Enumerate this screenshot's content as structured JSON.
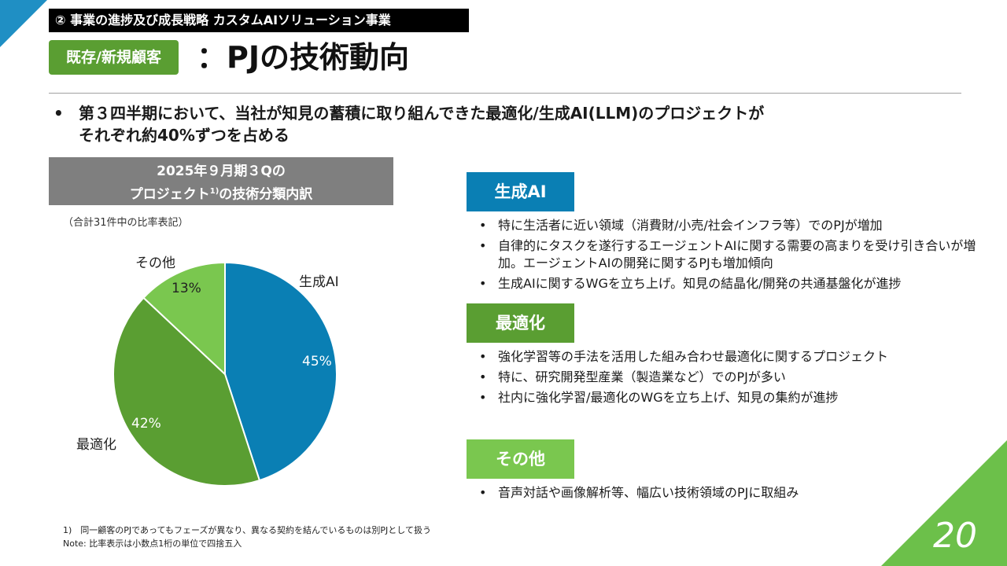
{
  "section_label": "② 事業の進捗及び成長戦略 カスタムAIソリューション事業",
  "badge": "既存/新規顧客",
  "title": "：PJの技術動向",
  "lead": {
    "bullet": "•",
    "text": "第３四半期において、当社が知見の蓄積に取り組んできた最適化/生成AI(LLM)のプロジェクトが\nそれぞれ約40%ずつを占める"
  },
  "chart_header": {
    "line1": "2025年９月期３Qの",
    "line2a": "プロジェクト",
    "sup": "1)",
    "line2b": "の技術分類内訳"
  },
  "chart_note": "（合計31件中の比率表記）",
  "chart_data": {
    "type": "pie",
    "slices": [
      {
        "label": "生成AI",
        "value": 45,
        "pct_label": "45%",
        "color": "#0a7fb4"
      },
      {
        "label": "最適化",
        "value": 42,
        "pct_label": "42%",
        "color": "#5a9e32"
      },
      {
        "label": "その他",
        "value": 13,
        "pct_label": "13%",
        "color": "#7ac74f"
      }
    ]
  },
  "categories": [
    {
      "label": "生成AI",
      "color": "#0a7fb4",
      "items": [
        "特に生活者に近い領域（消費財/小売/社会インフラ等）でのPJが増加",
        "自律的にタスクを遂行するエージェントAIに関する需要の高まりを受け引き合いが増加。エージェントAIの開発に関するPJも増加傾向",
        "生成AIに関するWGを立ち上げ。知見の結晶化/開発の共通基盤化が進捗"
      ]
    },
    {
      "label": "最適化",
      "color": "#5a9e32",
      "items": [
        "強化学習等の手法を活用した組み合わせ最適化に関するプロジェクト",
        "特に、研究開発型産業（製造業など）でのPJが多い",
        "社内に強化学習/最適化のWGを立ち上げ、知見の集約が進捗"
      ]
    },
    {
      "label": "その他",
      "color": "#7ac74f",
      "items": [
        "音声対話や画像解析等、幅広い技術領域のPJに取組み"
      ]
    }
  ],
  "footnotes": {
    "note1": "1)　同一顧客のPJであってもフェーズが異なり、異なる契約を結んでいるものは別PJとして扱う",
    "note2": "Note: 比率表示は小数点1桁の単位で四捨五入"
  },
  "page_number": "20",
  "colors": {
    "blue": "#0a7fb4",
    "green_dark": "#5a9e32",
    "green_light": "#7ac74f",
    "corner_blue": "#1f8fc4",
    "corner_green": "#6cc04a"
  }
}
